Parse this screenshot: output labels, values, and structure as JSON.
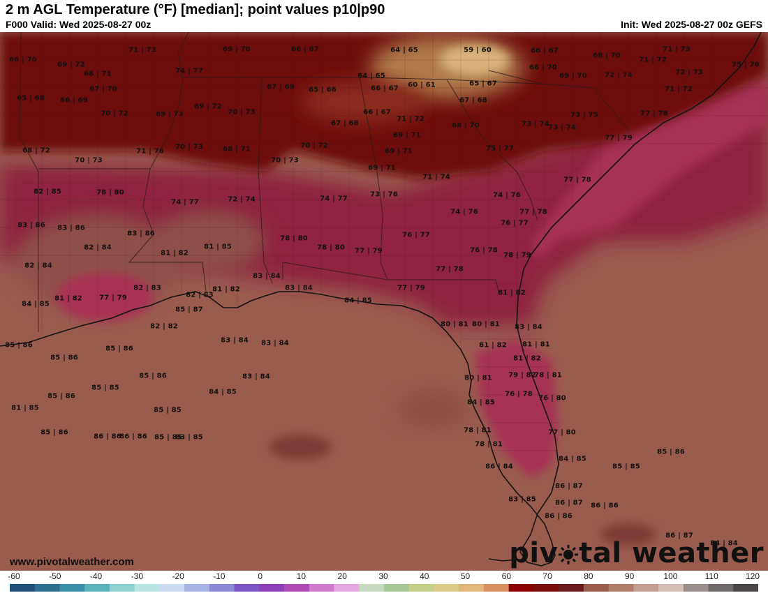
{
  "header": {
    "title": "2 m AGL Temperature (°F) [median]; point values p10|p90",
    "valid": "F000 Valid: Wed 2025-08-27 00z",
    "init": "Init: Wed 2025-08-27 00z GEFS"
  },
  "footer": {
    "website": "www.pivotalweather.com",
    "logo_pre": "piv",
    "logo_post": "tal weather"
  },
  "legend": {
    "ticks": [
      "-60",
      "-50",
      "-40",
      "-30",
      "-20",
      "-10",
      "0",
      "10",
      "20",
      "30",
      "40",
      "50",
      "60",
      "70",
      "80",
      "90",
      "100",
      "110",
      "120"
    ],
    "colors": [
      "#1f4e79",
      "#2d6e91",
      "#3b8fa9",
      "#5bb3b9",
      "#8fd3d0",
      "#b7e4e0",
      "#c9d9f0",
      "#a9b3e6",
      "#8c89d6",
      "#7a55c4",
      "#8e3fb8",
      "#b04bb6",
      "#d27ad0",
      "#e6a8df",
      "#c7d9c0",
      "#a9c99a",
      "#c7d08a",
      "#dccb8a",
      "#e2b77a",
      "#d89060",
      "#8b0000",
      "#7a0d0d",
      "#6b1b1b",
      "#9b5b4e",
      "#b07d6d",
      "#c49e92",
      "#d5bfb7",
      "#9a8f8c",
      "#6f6969",
      "#4b4646"
    ]
  },
  "map_points": [
    {
      "label": "66 | 70"
    },
    {
      "label": "69 | 72"
    },
    {
      "label": "71 | 73"
    },
    {
      "label": "69 | 70"
    },
    {
      "label": "66 | 67"
    },
    {
      "label": "64 | 65"
    },
    {
      "label": "59 | 60"
    },
    {
      "label": "66 | 67"
    },
    {
      "label": "68 | 70"
    },
    {
      "label": "71 | 73"
    },
    {
      "label": "71 | 72"
    },
    {
      "label": "68 | 71"
    },
    {
      "label": "74 | 77"
    },
    {
      "label": "64 | 65"
    },
    {
      "label": "68 | 70"
    },
    {
      "label": "69 | 70"
    },
    {
      "label": "72 | 74"
    },
    {
      "label": "72 | 73"
    },
    {
      "label": "75 | 76"
    },
    {
      "label": "65 | 68"
    },
    {
      "label": "67 | 70"
    },
    {
      "label": "67 | 69"
    },
    {
      "label": "65 | 66"
    },
    {
      "label": "66 | 67"
    },
    {
      "label": "60 | 61"
    },
    {
      "label": "65 | 67"
    },
    {
      "label": "71 | 72"
    },
    {
      "label": "66 | 69"
    },
    {
      "label": "69 | 72"
    },
    {
      "label": "67 | 68"
    },
    {
      "label": "70 | 72"
    },
    {
      "label": "69 | 73"
    },
    {
      "label": "70 | 73"
    },
    {
      "label": "66 | 67"
    },
    {
      "label": "73 | 75"
    },
    {
      "label": "77 | 78"
    },
    {
      "label": "67 | 68"
    },
    {
      "label": "71 | 72"
    },
    {
      "label": "68 | 70"
    },
    {
      "label": "73 | 74"
    },
    {
      "label": "73 | 74"
    },
    {
      "label": "69 | 71"
    },
    {
      "label": "77 | 79"
    },
    {
      "label": "70 | 73"
    },
    {
      "label": "68 | 71"
    },
    {
      "label": "70 | 72"
    },
    {
      "label": "68 | 72"
    },
    {
      "label": "71 | 76"
    },
    {
      "label": "69 | 71"
    },
    {
      "label": "75 | 77"
    },
    {
      "label": "70 | 73"
    },
    {
      "label": "70 | 73"
    },
    {
      "label": "69 | 71"
    },
    {
      "label": "77 | 78"
    },
    {
      "label": "71 | 74"
    },
    {
      "label": "82 | 85"
    },
    {
      "label": "78 | 80"
    },
    {
      "label": "74 | 77"
    },
    {
      "label": "72 | 74"
    },
    {
      "label": "74 | 77"
    },
    {
      "label": "73 | 76"
    },
    {
      "label": "74 | 76"
    },
    {
      "label": "77 | 78"
    },
    {
      "label": "74 | 76"
    },
    {
      "label": "83 | 86"
    },
    {
      "label": "83 | 86"
    },
    {
      "label": "83 | 86"
    },
    {
      "label": "76 | 77"
    },
    {
      "label": "76 | 77"
    },
    {
      "label": "78 | 80"
    },
    {
      "label": "82 | 84"
    },
    {
      "label": "81 | 82"
    },
    {
      "label": "81 | 85"
    },
    {
      "label": "78 | 80"
    },
    {
      "label": "77 | 79"
    },
    {
      "label": "76 | 78"
    },
    {
      "label": "78 | 79"
    },
    {
      "label": "82 | 84"
    },
    {
      "label": "83 | 84"
    },
    {
      "label": "77 | 78"
    },
    {
      "label": "81 | 82"
    },
    {
      "label": "77 | 79"
    },
    {
      "label": "82 | 83"
    },
    {
      "label": "81 | 82"
    },
    {
      "label": "83 | 84"
    },
    {
      "label": "77 | 79"
    },
    {
      "label": "82 | 83"
    },
    {
      "label": "84 | 85"
    },
    {
      "label": "81 | 82"
    },
    {
      "label": "84 | 85"
    },
    {
      "label": "85 | 87"
    },
    {
      "label": "82 | 82"
    },
    {
      "label": "80 | 81"
    },
    {
      "label": "80 | 81"
    },
    {
      "label": "83 | 84"
    },
    {
      "label": "85 | 86"
    },
    {
      "label": "83 | 84"
    },
    {
      "label": "83 | 84"
    },
    {
      "label": "81 | 82"
    },
    {
      "label": "81 | 81"
    },
    {
      "label": "85 | 86"
    },
    {
      "label": "85 | 86"
    },
    {
      "label": "81 | 82"
    },
    {
      "label": "85 | 86"
    },
    {
      "label": "83 | 84"
    },
    {
      "label": "80 | 81"
    },
    {
      "label": "79 | 82"
    },
    {
      "label": "78 | 81"
    },
    {
      "label": "85 | 85"
    },
    {
      "label": "84 | 85"
    },
    {
      "label": "76 | 78"
    },
    {
      "label": "76 | 80"
    },
    {
      "label": "85 | 86"
    },
    {
      "label": "84 | 85"
    },
    {
      "label": "85 | 85"
    },
    {
      "label": "81 | 85"
    },
    {
      "label": "86 | 86"
    },
    {
      "label": "78 | 81"
    },
    {
      "label": "77 | 80"
    },
    {
      "label": "85 | 86"
    },
    {
      "label": "86 | 86"
    },
    {
      "label": "83 | 85"
    },
    {
      "label": "78 | 81"
    },
    {
      "label": "85 | 85"
    },
    {
      "label": "84 | 85"
    },
    {
      "label": "86 | 84"
    },
    {
      "label": "85 | 85"
    },
    {
      "label": "86 | 87"
    },
    {
      "label": "83 | 85"
    },
    {
      "label": "86 | 87"
    },
    {
      "label": "86 | 86"
    },
    {
      "label": "86 | 86"
    },
    {
      "label": "85 | 86"
    },
    {
      "label": "86 | 87"
    },
    {
      "label": "84 | 84"
    }
  ]
}
